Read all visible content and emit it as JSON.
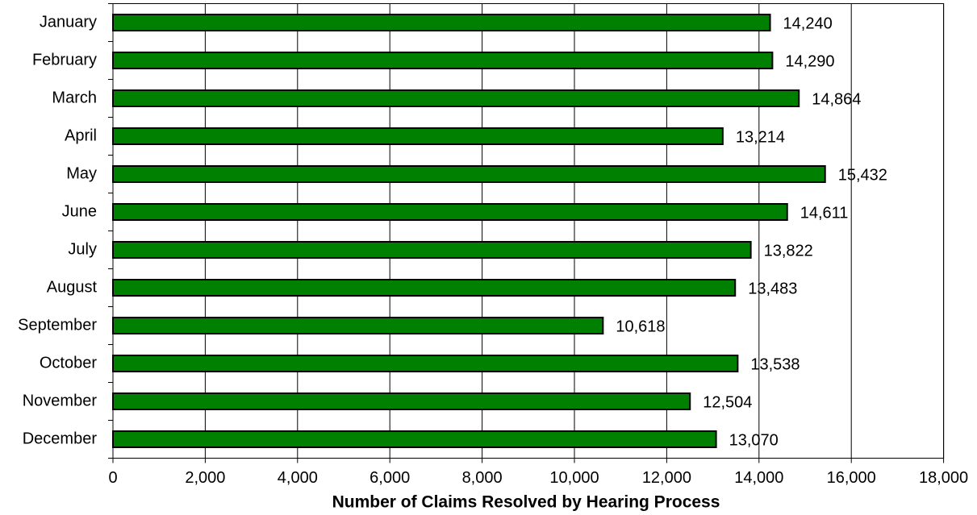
{
  "chart_data": {
    "type": "hbar",
    "xlabel": "Number of Claims Resolved by Hearing Process",
    "categories": [
      "January",
      "February",
      "March",
      "April",
      "May",
      "June",
      "July",
      "August",
      "September",
      "October",
      "November",
      "December"
    ],
    "values": [
      14240,
      14290,
      14864,
      13214,
      15432,
      14611,
      13822,
      13483,
      10618,
      13538,
      12504,
      13070
    ],
    "value_labels": [
      "14,240",
      "14,290",
      "14,864",
      "13,214",
      "15,432",
      "14,611",
      "13,822",
      "13,483",
      "10,618",
      "13,538",
      "12,504",
      "13,070"
    ],
    "color": "#008000",
    "xlim": [
      0,
      18000
    ],
    "xticks": [
      0,
      {
        "value": 2000,
        "label": "2,000"
      },
      {
        "value": 4000,
        "label": "4,000"
      },
      {
        "value": 6000,
        "label": "6,000"
      },
      {
        "value": 8000,
        "label": "8,000"
      },
      {
        "value": 10000,
        "label": "10,000"
      },
      {
        "value": 12000,
        "label": "12,000"
      },
      {
        "value": 14000,
        "label": "14,000"
      },
      {
        "value": 16000,
        "label": "16,000"
      },
      {
        "value": 18000,
        "label": "18,000"
      }
    ],
    "grid": true
  }
}
